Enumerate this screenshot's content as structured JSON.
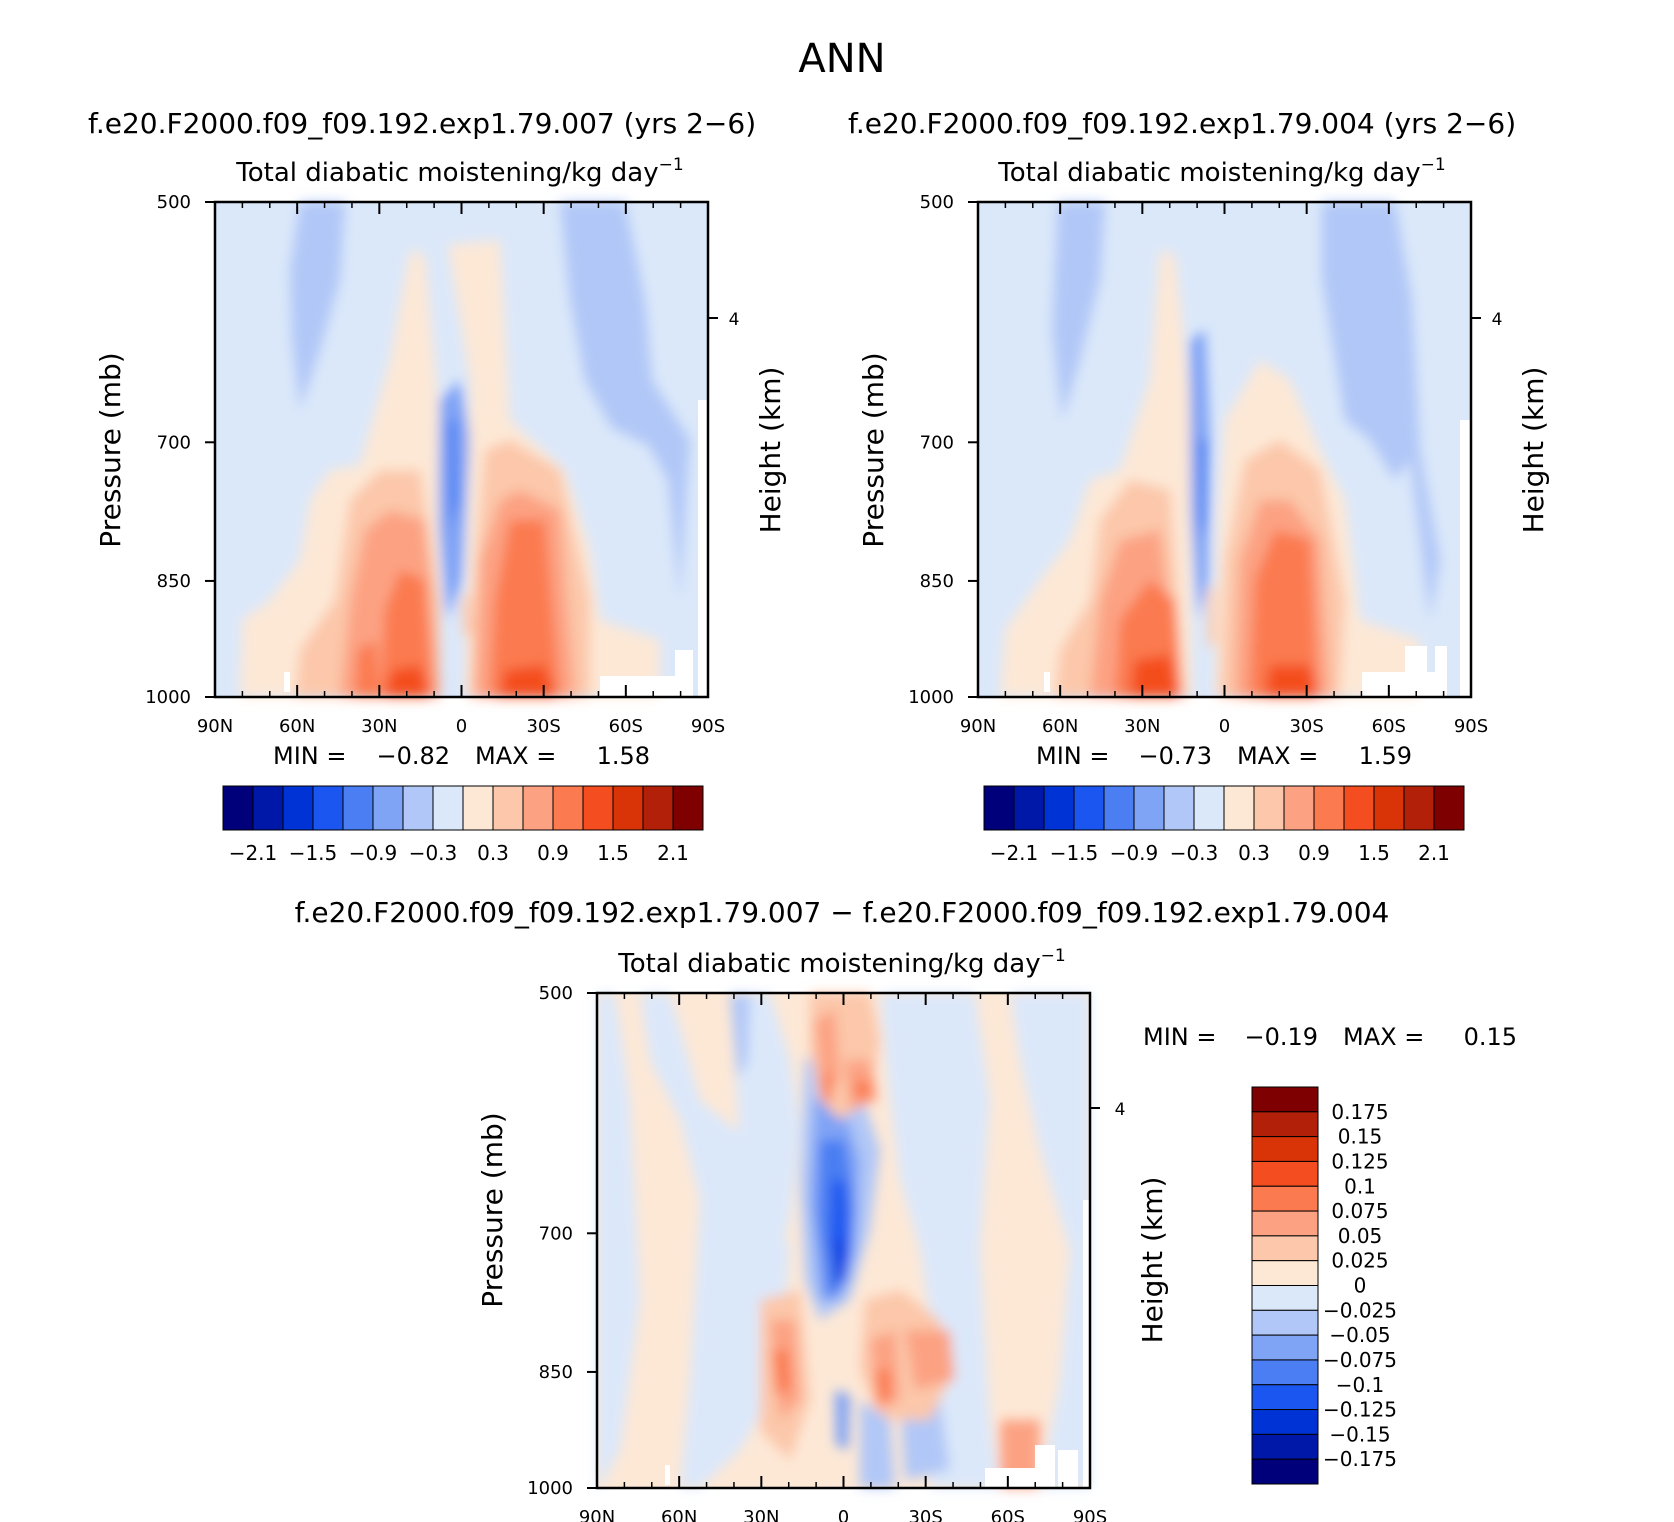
{
  "figure": {
    "title": "ANN",
    "diff_title": "f.e20.F2000.f09_f09.192.exp1.79.007 − f.e20.F2000.f09_f09.192.exp1.79.004"
  },
  "chart_data": [
    {
      "type": "heatmap",
      "case_title": "f.e20.F2000.f09_f09.192.exp1.79.007 (yrs 2−6)",
      "title": "Total diabatic moistening/kg day",
      "title_superscript": "−1",
      "ylabel": "Pressure (mb)",
      "y2label": "Height (km)",
      "y_ticks": [
        "500",
        "700",
        "850",
        "1000"
      ],
      "y_tick_values": [
        500,
        700,
        850,
        1000
      ],
      "y2_ticks": [
        "4"
      ],
      "x_ticks": [
        "90N",
        "60N",
        "30N",
        "0",
        "30S",
        "60S",
        "90S"
      ],
      "x_tick_values": [
        90,
        60,
        30,
        0,
        -30,
        -60,
        -90
      ],
      "xlim": [
        90,
        -90
      ],
      "ylim": [
        500,
        1000
      ],
      "min_label": "MIN =",
      "min": "−0.82",
      "max_label": "MAX =",
      "max": "1.58",
      "colorbar": {
        "orientation": "horizontal",
        "labels": [
          "−2.1",
          "−1.5",
          "−0.9",
          "−0.3",
          "0.3",
          "0.9",
          "1.5",
          "2.1"
        ],
        "colors": [
          "#00007a",
          "#0018a8",
          "#0033d6",
          "#1b56f0",
          "#4a7ef2",
          "#7fa3f5",
          "#b1c7f7",
          "#dbe8fa",
          "#fde8d6",
          "#fcc7aa",
          "#fca283",
          "#fb7a4f",
          "#f44d1f",
          "#d93308",
          "#b2200a",
          "#7f0000"
        ]
      },
      "features": [
        {
          "lat": 12,
          "p": 950,
          "value": 1.58
        },
        {
          "lat": 36,
          "p": 960,
          "value": 1.4
        },
        {
          "lat": -20,
          "p": 880,
          "value": 0.9
        },
        {
          "lat": 5,
          "p": 760,
          "value": -0.82
        },
        {
          "lat": -60,
          "p": 620,
          "value": -0.5
        },
        {
          "lat": 65,
          "p": 590,
          "value": -0.4
        }
      ]
    },
    {
      "type": "heatmap",
      "case_title": "f.e20.F2000.f09_f09.192.exp1.79.004 (yrs 2−6)",
      "title": "Total diabatic moistening/kg day",
      "title_superscript": "−1",
      "ylabel": "Pressure (mb)",
      "y2label": "Height (km)",
      "y_ticks": [
        "500",
        "700",
        "850",
        "1000"
      ],
      "y_tick_values": [
        500,
        700,
        850,
        1000
      ],
      "y2_ticks": [
        "4"
      ],
      "x_ticks": [
        "90N",
        "60N",
        "30N",
        "0",
        "30S",
        "60S",
        "90S"
      ],
      "x_tick_values": [
        90,
        60,
        30,
        0,
        -30,
        -60,
        -90
      ],
      "xlim": [
        90,
        -90
      ],
      "ylim": [
        500,
        1000
      ],
      "min_label": "MIN =",
      "min": "−0.73",
      "max_label": "MAX =",
      "max": "1.59",
      "colorbar": {
        "orientation": "horizontal",
        "labels": [
          "−2.1",
          "−1.5",
          "−0.9",
          "−0.3",
          "0.3",
          "0.9",
          "1.5",
          "2.1"
        ],
        "colors": [
          "#00007a",
          "#0018a8",
          "#0033d6",
          "#1b56f0",
          "#4a7ef2",
          "#7fa3f5",
          "#b1c7f7",
          "#dbe8fa",
          "#fde8d6",
          "#fcc7aa",
          "#fca283",
          "#fb7a4f",
          "#f44d1f",
          "#d93308",
          "#b2200a",
          "#7f0000"
        ]
      },
      "features": [
        {
          "lat": 20,
          "p": 955,
          "value": 1.59
        },
        {
          "lat": -30,
          "p": 950,
          "value": 1.45
        },
        {
          "lat": 5,
          "p": 770,
          "value": -0.73
        },
        {
          "lat": -60,
          "p": 610,
          "value": -0.45
        },
        {
          "lat": 62,
          "p": 590,
          "value": -0.35
        }
      ]
    },
    {
      "type": "heatmap",
      "title": "Total diabatic moistening/kg day",
      "title_superscript": "−1",
      "ylabel": "Pressure (mb)",
      "y2label": "Height (km)",
      "y_ticks": [
        "500",
        "700",
        "850",
        "1000"
      ],
      "y_tick_values": [
        500,
        700,
        850,
        1000
      ],
      "y2_ticks": [
        "4"
      ],
      "x_ticks": [
        "90N",
        "60N",
        "30N",
        "0",
        "30S",
        "60S",
        "90S"
      ],
      "x_tick_values": [
        90,
        60,
        30,
        0,
        -30,
        -60,
        -90
      ],
      "xlim": [
        90,
        -90
      ],
      "ylim": [
        500,
        1000
      ],
      "min_label": "MIN =",
      "min": "−0.19",
      "max_label": "MAX =",
      "max": "0.15",
      "colorbar": {
        "orientation": "vertical",
        "labels": [
          "0.175",
          "0.15",
          "0.125",
          "0.1",
          "0.075",
          "0.05",
          "0.025",
          "0",
          "−0.025",
          "−0.05",
          "−0.075",
          "−0.1",
          "−0.125",
          "−0.15",
          "−0.175"
        ],
        "colors": [
          "#7f0000",
          "#b2200a",
          "#d93308",
          "#f44d1f",
          "#fb7a4f",
          "#fca283",
          "#fcc7aa",
          "#fde8d6",
          "#dbe8fa",
          "#b1c7f7",
          "#7fa3f5",
          "#4a7ef2",
          "#1b56f0",
          "#0033d6",
          "#0018a8",
          "#00007a"
        ]
      },
      "features": [
        {
          "lat": 0,
          "p": 790,
          "value": -0.19
        },
        {
          "lat": 8,
          "p": 600,
          "value": 0.15
        },
        {
          "lat": 25,
          "p": 870,
          "value": 0.1
        },
        {
          "lat": -10,
          "p": 900,
          "value": 0.1
        },
        {
          "lat": -30,
          "p": 880,
          "value": 0.08
        },
        {
          "lat": -25,
          "p": 960,
          "value": -0.06
        }
      ]
    }
  ]
}
